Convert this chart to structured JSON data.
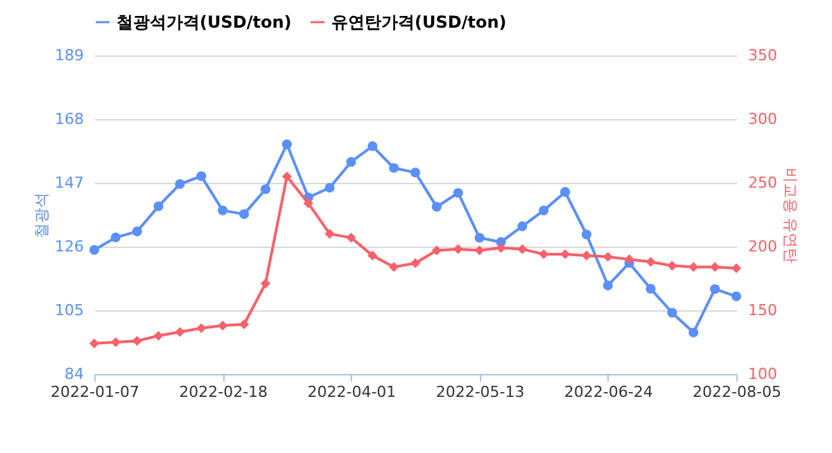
{
  "chart_data": {
    "type": "line",
    "x": [
      "2022-01-07",
      "2022-01-14",
      "2022-01-21",
      "2022-01-28",
      "2022-02-04",
      "2022-02-11",
      "2022-02-18",
      "2022-02-25",
      "2022-03-04",
      "2022-03-11",
      "2022-03-18",
      "2022-03-25",
      "2022-04-01",
      "2022-04-08",
      "2022-04-15",
      "2022-04-22",
      "2022-04-29",
      "2022-05-06",
      "2022-05-13",
      "2022-05-20",
      "2022-05-27",
      "2022-06-03",
      "2022-06-10",
      "2022-06-17",
      "2022-06-24",
      "2022-07-01",
      "2022-07-08",
      "2022-07-15",
      "2022-07-22",
      "2022-07-29",
      "2022-08-05"
    ],
    "series": [
      {
        "name": "철광석가격(USD/ton)",
        "color": "#5b8ff9",
        "marker": "circle",
        "values": [
          124.9,
          129.0,
          131.0,
          139.3,
          146.6,
          149.2,
          137.9,
          136.7,
          144.9,
          159.7,
          142.2,
          145.4,
          153.9,
          159.1,
          151.9,
          150.4,
          139.1,
          143.7,
          128.9,
          127.5,
          132.7,
          137.9,
          144.0,
          130.0,
          113.2,
          120.6,
          112.1,
          104.2,
          97.7,
          112.0,
          109.6
        ]
      },
      {
        "name": "유연탄가격(USD/ton)",
        "color": "#f6616a",
        "marker": "diamond",
        "axis": "y2",
        "values": [
          124,
          125,
          126,
          130,
          133,
          136,
          138,
          139,
          171,
          255,
          234,
          210,
          207,
          193,
          184,
          187,
          197,
          198,
          197,
          199,
          198,
          194,
          194,
          193,
          192,
          190,
          188,
          185,
          184,
          184,
          183
        ]
      }
    ],
    "xlim": [
      "2022-01-07",
      "2022-08-05"
    ],
    "xticks": [
      "2022-01-07",
      "2022-02-18",
      "2022-04-01",
      "2022-05-13",
      "2022-06-24",
      "2022-08-05"
    ],
    "ylabel": "철광석",
    "y2label": "비교용 유연탄",
    "ylim": [
      84,
      189
    ],
    "yticks": [
      84,
      105,
      126,
      147,
      168,
      189
    ],
    "y2lim": [
      100,
      350
    ],
    "y2ticks": [
      100,
      150,
      200,
      250,
      300,
      350
    ],
    "grid": "y",
    "legend": "top"
  }
}
